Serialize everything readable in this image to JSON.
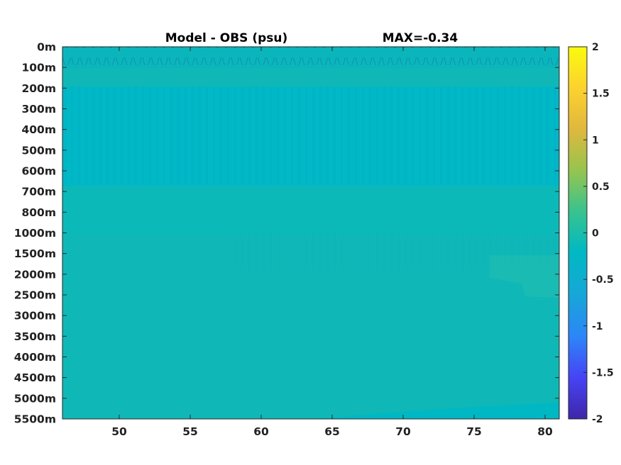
{
  "chart_data": {
    "type": "heatmap",
    "title": "Model - OBS (psu)",
    "annotation": "MAX=-0.34",
    "xlabel": "",
    "ylabel": "",
    "x_range": [
      46,
      81
    ],
    "x_ticks": [
      50,
      55,
      60,
      65,
      70,
      75,
      80
    ],
    "x_tick_labels": [
      "50",
      "55",
      "60",
      "65",
      "70",
      "75",
      "80"
    ],
    "y_tick_labels": [
      "0m",
      "100m",
      "200m",
      "300m",
      "400m",
      "500m",
      "600m",
      "700m",
      "800m",
      "1000m",
      "1500m",
      "2000m",
      "2500m",
      "3000m",
      "3500m",
      "4000m",
      "4500m",
      "5000m",
      "5500m"
    ],
    "y_axis_direction": "depth increasing downward",
    "colorbar": {
      "clim": [
        -2,
        2
      ],
      "ticks": [
        2,
        1.5,
        1,
        0.5,
        0,
        -0.5,
        -1,
        -1.5,
        -2
      ],
      "tick_labels": [
        "2",
        "1.5",
        "1",
        "0.5",
        "0",
        "-0.5",
        "-1",
        "-1.5",
        "-2"
      ],
      "colormap": "parula",
      "colors": [
        "#3e26a8",
        "#4743f4",
        "#2d85f8",
        "#16a8d6",
        "#00b9c3",
        "#3ac38d",
        "#98c44e",
        "#e0b83e",
        "#fdd22f",
        "#f9fb0e"
      ]
    },
    "depth_bands": [
      {
        "depth": "0m-100m",
        "value": -0.1
      },
      {
        "depth": "200m-600m",
        "value": -0.2
      },
      {
        "depth": "700m-1000m",
        "value": -0.05
      },
      {
        "depth": "1000m-2000m",
        "value": -0.02
      },
      {
        "depth": "2000m-5500m",
        "value": -0.05
      }
    ],
    "grid": false
  }
}
